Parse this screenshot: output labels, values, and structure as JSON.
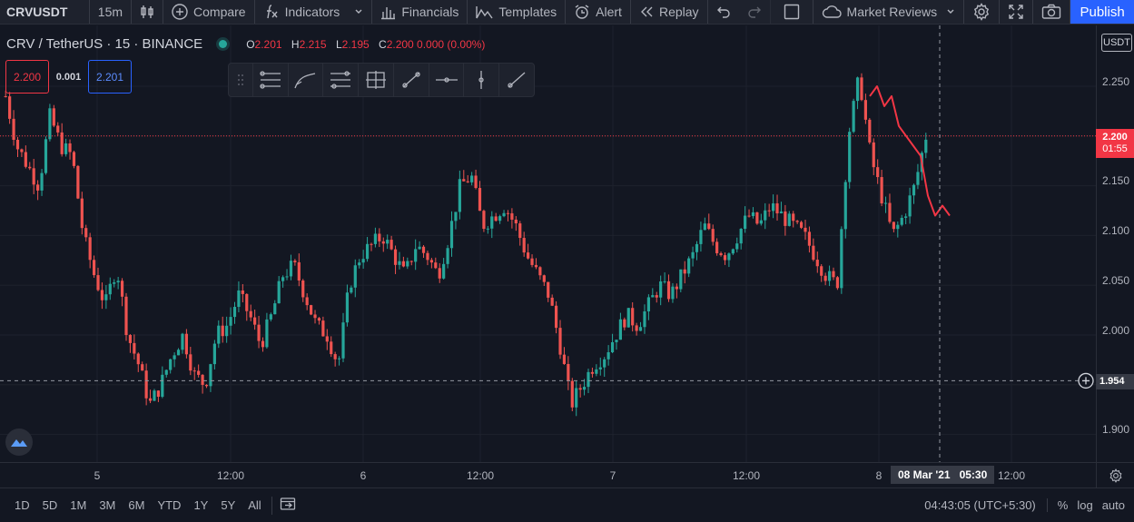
{
  "toolbar": {
    "symbol": "CRVUSDT",
    "interval": "15m",
    "compare": "Compare",
    "indicators": "Indicators",
    "financials": "Financials",
    "templates": "Templates",
    "alert": "Alert",
    "replay": "Replay",
    "market_reviews": "Market Reviews",
    "publish": "Publish"
  },
  "legend": {
    "title": "CRV / TetherUS · 15 · BINANCE",
    "o_key": "O",
    "o_val": "2.201",
    "h_key": "H",
    "h_val": "2.215",
    "l_key": "L",
    "l_val": "2.195",
    "c_key": "C",
    "c_val": "2.200 0.000 (0.00%)",
    "sell": "2.200",
    "spread": "0.001",
    "buy": "2.201"
  },
  "y_axis": {
    "currency": "USDT",
    "ticks": [
      "2.250",
      "2.150",
      "2.100",
      "2.050",
      "2.000",
      "1.900"
    ],
    "current_price": "2.200",
    "countdown": "01:55",
    "crosshair_price": "1.954"
  },
  "x_axis": {
    "ticks": [
      "5",
      "12:00",
      "6",
      "12:00",
      "7",
      "12:00",
      "8",
      "12:00"
    ],
    "crosshair_date": "08 Mar '21",
    "crosshair_time": "05:30"
  },
  "bottom": {
    "ranges": [
      "1D",
      "5D",
      "1M",
      "3M",
      "6M",
      "YTD",
      "1Y",
      "5Y",
      "All"
    ],
    "clock": "04:43:05 (UTC+5:30)",
    "percent": "%",
    "log": "log",
    "auto": "auto"
  },
  "colors": {
    "up": "#26a69a",
    "down": "#ef5350",
    "accent": "#2962ff",
    "background": "#131722"
  },
  "chart_data": {
    "type": "candlestick",
    "symbol": "CRV / TetherUS",
    "interval": "15",
    "exchange": "BINANCE",
    "ylim": [
      1.87,
      2.29
    ],
    "y_ticks": [
      1.9,
      2.0,
      2.05,
      2.1,
      2.15,
      2.25
    ],
    "x_ticks": [
      "5",
      "12:00",
      "6",
      "12:00",
      "7",
      "12:00",
      "8",
      "12:00"
    ],
    "grid": true,
    "close_series": [
      2.24,
      2.19,
      2.17,
      2.15,
      2.22,
      2.19,
      2.18,
      2.1,
      2.06,
      2.03,
      2.07,
      2.0,
      1.97,
      1.93,
      1.95,
      1.98,
      2.0,
      1.96,
      1.95,
      2.0,
      2.01,
      2.04,
      2.02,
      1.99,
      2.02,
      2.06,
      2.07,
      2.04,
      2.01,
      2.0,
      1.97,
      2.05,
      2.08,
      2.09,
      2.1,
      2.08,
      2.06,
      2.09,
      2.08,
      2.06,
      2.1,
      2.15,
      2.16,
      2.11,
      2.12,
      2.13,
      2.11,
      2.08,
      2.06,
      2.04,
      1.99,
      1.93,
      1.95,
      1.97,
      1.98,
      2.0,
      2.02,
      2.01,
      2.03,
      2.05,
      2.04,
      2.06,
      2.08,
      2.11,
      2.09,
      2.08,
      2.1,
      2.12,
      2.11,
      2.13,
      2.12,
      2.11,
      2.1,
      2.08,
      2.06,
      2.05,
      2.2,
      2.26,
      2.18,
      2.14,
      2.1,
      2.12,
      2.15,
      2.2
    ],
    "forecast_line": [
      2.24,
      2.25,
      2.23,
      2.24,
      2.21,
      2.2,
      2.19,
      2.18,
      2.14,
      2.12,
      2.13,
      2.12
    ]
  }
}
